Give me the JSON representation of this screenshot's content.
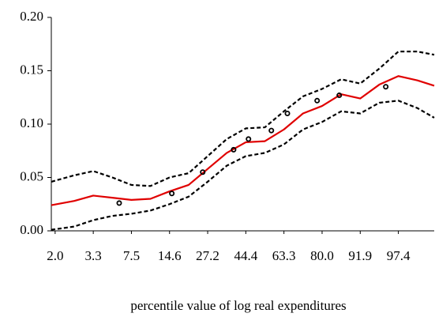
{
  "chart_data": {
    "type": "line",
    "x_label": "percentile value of log real expenditures",
    "xlim": [
      -0.1,
      9.94
    ],
    "xticks": [
      {
        "value": 0,
        "label": "2.0"
      },
      {
        "value": 1,
        "label": "3.3"
      },
      {
        "value": 2,
        "label": "7.5"
      },
      {
        "value": 3,
        "label": "14.6"
      },
      {
        "value": 4,
        "label": "27.2"
      },
      {
        "value": 5,
        "label": "44.4"
      },
      {
        "value": 6,
        "label": "63.3"
      },
      {
        "value": 7,
        "label": "80.0"
      },
      {
        "value": 8,
        "label": "91.9"
      },
      {
        "value": 9,
        "label": "97.4"
      }
    ],
    "ylim": [
      0,
      0.2
    ],
    "yticks": [
      {
        "value": 0,
        "label": "0.00"
      },
      {
        "value": 0.05,
        "label": "0.05"
      },
      {
        "value": 0.1,
        "label": "0.10"
      },
      {
        "value": 0.15,
        "label": "0.15"
      },
      {
        "value": 0.2,
        "label": "0.20"
      }
    ],
    "series": [
      {
        "style": "solid",
        "color": "#e00000",
        "x": [
          -0.1,
          0.5,
          1,
          1.5,
          2,
          2.5,
          3,
          3.5,
          4,
          4.5,
          5,
          5.5,
          6,
          6.5,
          7,
          7.5,
          8,
          8.5,
          9,
          9.5,
          9.94
        ],
        "values": [
          0.024,
          0.028,
          0.033,
          0.031,
          0.029,
          0.03,
          0.037,
          0.043,
          0.058,
          0.073,
          0.083,
          0.084,
          0.095,
          0.11,
          0.117,
          0.128,
          0.124,
          0.137,
          0.145,
          0.141,
          0.136
        ]
      },
      {
        "style": "dashed",
        "color": "#000000",
        "x": [
          -0.1,
          0.5,
          1,
          1.5,
          2,
          2.5,
          3,
          3.5,
          4,
          4.5,
          5,
          5.5,
          6,
          6.5,
          7,
          7.5,
          8,
          8.5,
          9,
          9.5,
          9.94
        ],
        "values": [
          0.046,
          0.052,
          0.056,
          0.05,
          0.043,
          0.042,
          0.05,
          0.054,
          0.07,
          0.086,
          0.096,
          0.097,
          0.112,
          0.126,
          0.133,
          0.142,
          0.138,
          0.152,
          0.168,
          0.168,
          0.165
        ]
      },
      {
        "style": "dashed",
        "color": "#000000",
        "x": [
          -0.1,
          0.5,
          1,
          1.5,
          2,
          2.5,
          3,
          3.5,
          4,
          4.5,
          5,
          5.5,
          6,
          6.5,
          7,
          7.5,
          8,
          8.5,
          9,
          9.5,
          9.94
        ],
        "values": [
          0.001,
          0.004,
          0.01,
          0.014,
          0.016,
          0.019,
          0.025,
          0.032,
          0.046,
          0.061,
          0.07,
          0.073,
          0.081,
          0.095,
          0.102,
          0.112,
          0.11,
          0.12,
          0.122,
          0.115,
          0.106
        ]
      },
      {
        "style": "points",
        "color": "#000000",
        "x": [
          1.68,
          3.06,
          3.87,
          4.68,
          5.07,
          5.67,
          6.09,
          6.87,
          7.45,
          8.67
        ],
        "values": [
          0.026,
          0.035,
          0.055,
          0.076,
          0.086,
          0.094,
          0.11,
          0.122,
          0.127,
          0.135
        ]
      }
    ]
  }
}
